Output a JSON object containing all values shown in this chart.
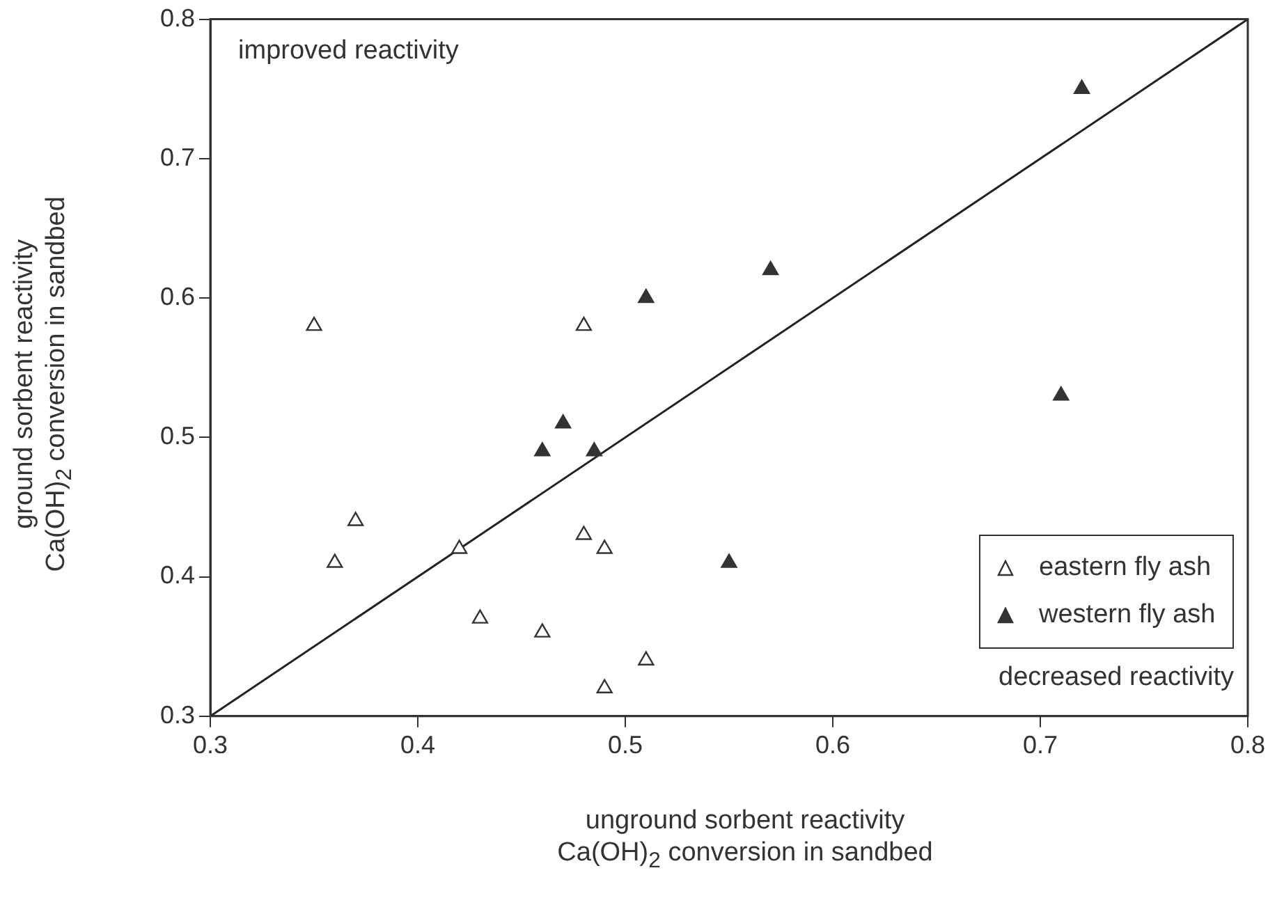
{
  "chart_data": {
    "type": "scatter",
    "xlabel": "unground sorbent reactivity\nCa(OH)$_{2}$ conversion in sandbed",
    "ylabel": "ground sorbent reactivity\nCa(OH)$_{2}$ conversion in sandbed",
    "xlim": [
      0.3,
      0.8
    ],
    "xticks": [
      0.3,
      0.4,
      0.5,
      0.6,
      0.7,
      0.8
    ],
    "ylim": [
      0.3,
      0.8
    ],
    "yticks": [
      0.3,
      0.4,
      0.5,
      0.6,
      0.7,
      0.8
    ],
    "marker": "triangle",
    "legend": "bottom right",
    "grid": false,
    "annotations": [
      "improved reactivity",
      "decreased reactivity"
    ],
    "series": [
      {
        "name": "eastern fly ash",
        "color": "#ffffff",
        "x": [
          0.35,
          0.36,
          0.37,
          0.42,
          0.43,
          0.46,
          0.48,
          0.48,
          0.49,
          0.49,
          0.51
        ],
        "values": [
          0.58,
          0.41,
          0.44,
          0.42,
          0.37,
          0.36,
          0.58,
          0.43,
          0.42,
          0.32,
          0.34
        ]
      },
      {
        "name": "western fly ash",
        "color": "#333333",
        "x": [
          0.46,
          0.47,
          0.485,
          0.51,
          0.55,
          0.57,
          0.71,
          0.72
        ],
        "values": [
          0.49,
          0.51,
          0.49,
          0.6,
          0.41,
          0.62,
          0.53,
          0.75
        ]
      },
      {
        "type": "line",
        "marker": "none",
        "color": "#222222",
        "x": [
          0.3,
          0.8
        ],
        "values": [
          0.3,
          0.8
        ]
      }
    ]
  }
}
